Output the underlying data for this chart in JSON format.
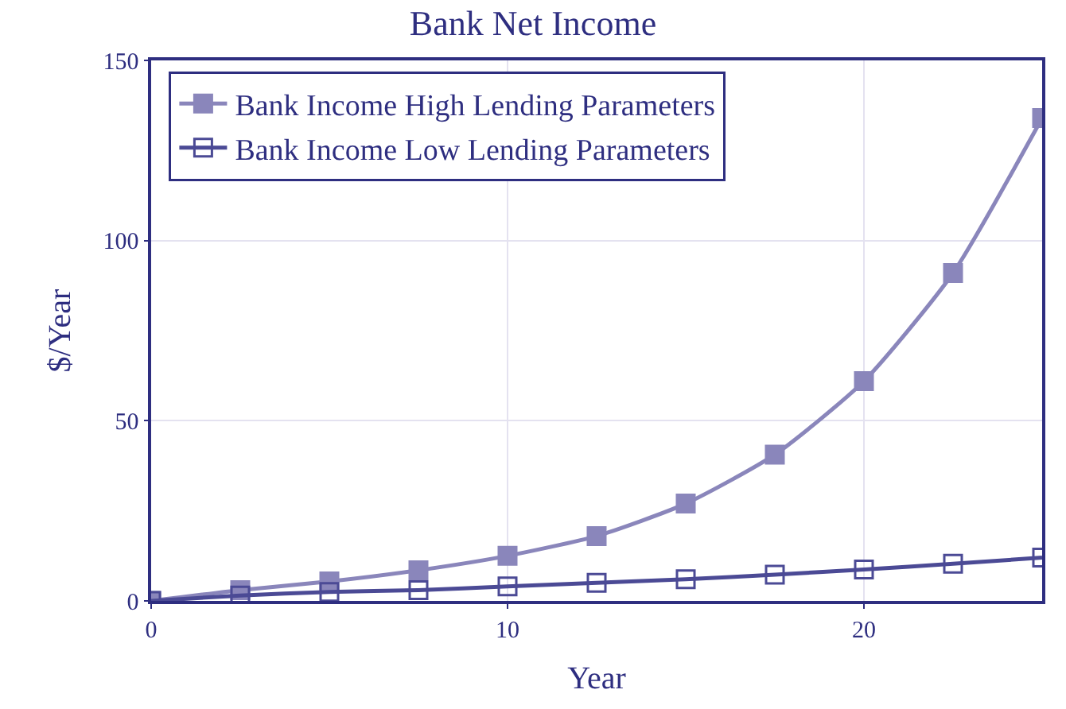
{
  "chart_data": {
    "type": "line",
    "title": "Bank Net Income",
    "xlabel": "Year",
    "ylabel": "$/Year",
    "x": [
      0,
      2.5,
      5,
      7.5,
      10,
      12.5,
      15,
      17.5,
      20,
      22.5,
      25
    ],
    "series": [
      {
        "name": "Bank Income High Lending Parameters",
        "color": "#8a86bb",
        "marker": "square",
        "values": [
          0,
          3,
          5.4,
          8.5,
          12.5,
          18,
          27,
          40.6,
          61,
          91,
          134
        ]
      },
      {
        "name": "Bank Income Low Lending Parameters",
        "color": "#4b4a95",
        "marker": "square-open",
        "values": [
          0,
          1.5,
          2.5,
          3,
          4,
          5,
          6,
          7.3,
          8.7,
          10.3,
          12
        ]
      }
    ],
    "xlim": [
      0,
      25
    ],
    "xticks": [
      0,
      10,
      20
    ],
    "ylim": [
      0,
      150
    ],
    "yticks": [
      0,
      50,
      100,
      150
    ],
    "grid": true,
    "legend": "top left",
    "line_style": "solid"
  }
}
